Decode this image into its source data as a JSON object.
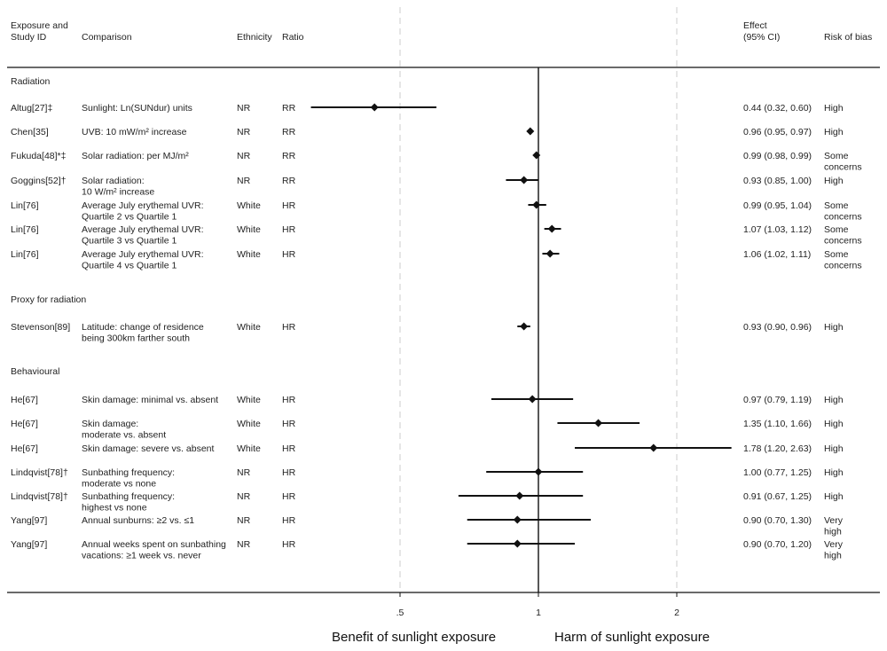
{
  "chart_data": {
    "type": "forest",
    "columns": {
      "study": "Exposure and Study ID",
      "comparison": "Comparison",
      "ethnicity": "Ethnicity",
      "ratio": "Ratio",
      "effect": "Effect (95% CI)",
      "risk": "Risk of bias"
    },
    "sections": [
      {
        "label": "Radiation",
        "rows": [
          {
            "study": "Altug[27]‡",
            "comparison": [
              "Sunlight: Ln(SUNdur) units"
            ],
            "ethnicity": "NR",
            "ratio": "RR",
            "est": 0.44,
            "lo": 0.32,
            "hi": 0.6,
            "effect": "0.44 (0.32, 0.60)",
            "risk": [
              "High"
            ]
          },
          {
            "study": "Chen[35]",
            "comparison": [
              "UVB: 10 mW/m² increase"
            ],
            "ethnicity": "NR",
            "ratio": "RR",
            "est": 0.96,
            "lo": 0.95,
            "hi": 0.97,
            "effect": "0.96 (0.95, 0.97)",
            "risk": [
              "High"
            ]
          },
          {
            "study": "Fukuda[48]*‡",
            "comparison": [
              "Solar radiation: per MJ/m²"
            ],
            "ethnicity": "NR",
            "ratio": "RR",
            "est": 0.99,
            "lo": 0.98,
            "hi": 0.99,
            "effect": "0.99 (0.98, 0.99)",
            "risk": [
              "Some",
              "concerns"
            ]
          },
          {
            "study": "Goggins[52]†",
            "comparison": [
              "Solar radiation:",
              "10 W/m² increase"
            ],
            "ethnicity": "NR",
            "ratio": "RR",
            "est": 0.93,
            "lo": 0.85,
            "hi": 1.0,
            "effect": "0.93 (0.85, 1.00)",
            "risk": [
              "High"
            ]
          },
          {
            "study": "Lin[76]",
            "comparison": [
              "Average July erythemal UVR:",
              "Quartile 2 vs Quartile 1"
            ],
            "ethnicity": "White",
            "ratio": "HR",
            "est": 0.99,
            "lo": 0.95,
            "hi": 1.04,
            "effect": "0.99 (0.95, 1.04)",
            "risk": [
              "Some",
              "concerns"
            ]
          },
          {
            "study": "Lin[76]",
            "comparison": [
              "Average July erythemal UVR:",
              "Quartile 3 vs Quartile 1"
            ],
            "ethnicity": "White",
            "ratio": "HR",
            "est": 1.07,
            "lo": 1.03,
            "hi": 1.12,
            "effect": "1.07 (1.03, 1.12)",
            "risk": [
              "Some",
              "concerns"
            ]
          },
          {
            "study": "Lin[76]",
            "comparison": [
              "Average July erythemal UVR:",
              "Quartile 4 vs Quartile 1"
            ],
            "ethnicity": "White",
            "ratio": "HR",
            "est": 1.06,
            "lo": 1.02,
            "hi": 1.11,
            "effect": "1.06 (1.02, 1.11)",
            "risk": [
              "Some",
              "concerns"
            ]
          }
        ]
      },
      {
        "label": "Proxy for radiation",
        "rows": [
          {
            "study": "Stevenson[89]",
            "comparison": [
              "Latitude: change of residence",
              "being 300km farther south"
            ],
            "ethnicity": "White",
            "ratio": "HR",
            "est": 0.93,
            "lo": 0.9,
            "hi": 0.96,
            "effect": "0.93 (0.90, 0.96)",
            "risk": [
              "High"
            ]
          }
        ]
      },
      {
        "label": "Behavioural",
        "rows": [
          {
            "study": "He[67]",
            "comparison": [
              "Skin damage: minimal vs. absent"
            ],
            "ethnicity": "White",
            "ratio": "HR",
            "est": 0.97,
            "lo": 0.79,
            "hi": 1.19,
            "effect": "0.97 (0.79, 1.19)",
            "risk": [
              "High"
            ]
          },
          {
            "study": "He[67]",
            "comparison": [
              "Skin damage:",
              "moderate vs. absent"
            ],
            "ethnicity": "White",
            "ratio": "HR",
            "est": 1.35,
            "lo": 1.1,
            "hi": 1.66,
            "effect": "1.35 (1.10, 1.66)",
            "risk": [
              "High"
            ]
          },
          {
            "study": "He[67]",
            "comparison": [
              "Skin damage: severe vs. absent"
            ],
            "ethnicity": "White",
            "ratio": "HR",
            "est": 1.78,
            "lo": 1.2,
            "hi": 2.63,
            "effect": "1.78 (1.20, 2.63)",
            "risk": [
              "High"
            ]
          },
          {
            "study": "Lindqvist[78]†",
            "comparison": [
              "Sunbathing frequency:",
              "moderate vs none"
            ],
            "ethnicity": "NR",
            "ratio": "HR",
            "est": 1.0,
            "lo": 0.77,
            "hi": 1.25,
            "effect": "1.00 (0.77, 1.25)",
            "risk": [
              "High"
            ]
          },
          {
            "study": "Lindqvist[78]†",
            "comparison": [
              "Sunbathing frequency:",
              "highest vs none"
            ],
            "ethnicity": "NR",
            "ratio": "HR",
            "est": 0.91,
            "lo": 0.67,
            "hi": 1.25,
            "effect": "0.91 (0.67, 1.25)",
            "risk": [
              "High"
            ]
          },
          {
            "study": "Yang[97]",
            "comparison": [
              "Annual sunburns: ≥2 vs. ≤1"
            ],
            "ethnicity": "NR",
            "ratio": "HR",
            "est": 0.9,
            "lo": 0.7,
            "hi": 1.3,
            "effect": "0.90 (0.70, 1.30)",
            "risk": [
              "Very",
              "high"
            ]
          },
          {
            "study": "Yang[97]",
            "comparison": [
              "Annual weeks spent on sunbathing",
              "vacations: ≥1 week vs. never"
            ],
            "ethnicity": "NR",
            "ratio": "HR",
            "est": 0.9,
            "lo": 0.7,
            "hi": 1.2,
            "effect": "0.90 (0.70, 1.20)",
            "risk": [
              "Very",
              "high"
            ]
          }
        ]
      }
    ],
    "x_scale": "log",
    "xlim": [
      0.25,
      3.2
    ],
    "x_ticks": [
      0.5,
      1,
      2
    ],
    "x_tick_labels": [
      ".5",
      "1",
      "2"
    ],
    "null_value": 1,
    "footer_left": "Benefit of sunlight exposure",
    "footer_right": "Harm of sunlight exposure"
  }
}
